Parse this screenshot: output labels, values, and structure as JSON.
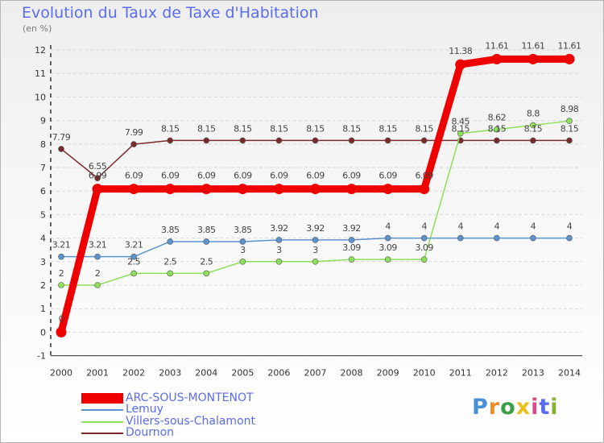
{
  "title": "Evolution du Taux de Taxe d'Habitation",
  "unit_label": "(en %)",
  "logo_text": "Proxiti",
  "logo_colors": [
    "#4a90d9",
    "#f08c28",
    "#3aa048",
    "#e8c020",
    "#d84a8a",
    "#5a6cf0",
    "#88b030"
  ],
  "chart_data": {
    "type": "line",
    "title": "Evolution du Taux de Taxe d'Habitation",
    "ylabel": "(en %)",
    "xlabel": "",
    "x": [
      "2000",
      "2001",
      "2002",
      "2003",
      "2004",
      "2005",
      "2006",
      "2007",
      "2008",
      "2009",
      "2010",
      "2011",
      "2012",
      "2013",
      "2014"
    ],
    "ylim": [
      -1,
      12
    ],
    "yticks": [
      "-1",
      "0",
      "1",
      "2",
      "3",
      "4",
      "5",
      "6",
      "7",
      "8",
      "9",
      "10",
      "11",
      "12"
    ],
    "legend_position": "bottom-left",
    "series": [
      {
        "name": "ARC-SOUS-MONTENOT",
        "color": "#ee0000",
        "emphasis": true,
        "values": [
          0,
          6.09,
          6.09,
          6.09,
          6.09,
          6.09,
          6.09,
          6.09,
          6.09,
          6.09,
          6.09,
          11.38,
          11.61,
          11.61,
          11.61
        ],
        "labels": [
          "0",
          "6.09",
          "6.09",
          "6.09",
          "6.09",
          "6.09",
          "6.09",
          "6.09",
          "6.09",
          "6.09",
          "6.09",
          "11.38",
          "11.61",
          "11.61",
          "11.61"
        ]
      },
      {
        "name": "Lemuy",
        "color": "#5a94cf",
        "emphasis": false,
        "values": [
          3.21,
          3.21,
          3.21,
          3.85,
          3.85,
          3.85,
          3.92,
          3.92,
          3.92,
          4,
          4,
          4,
          4,
          4,
          4
        ],
        "labels": [
          "3.21",
          "3.21",
          "3.21",
          "3.85",
          "3.85",
          "3.85",
          "3.92",
          "3.92",
          "3.92",
          "4",
          "4",
          "4",
          "4",
          "4",
          "4"
        ]
      },
      {
        "name": "Villers-sous-Chalamont",
        "color": "#8ee05a",
        "emphasis": false,
        "values": [
          2,
          2,
          2.5,
          2.5,
          2.5,
          3,
          3,
          3,
          3.09,
          3.09,
          3.09,
          8.45,
          8.62,
          8.8,
          8.98
        ],
        "labels": [
          "2",
          "2",
          "2.5",
          "2.5",
          "2.5",
          "3",
          "3",
          "3",
          "3.09",
          "3.09",
          "3.09",
          "8.45",
          "8.62",
          "8.8",
          "8.98"
        ]
      },
      {
        "name": "Dournon",
        "color": "#7a2a2a",
        "emphasis": false,
        "values": [
          7.79,
          6.55,
          7.99,
          8.15,
          8.15,
          8.15,
          8.15,
          8.15,
          8.15,
          8.15,
          8.15,
          8.15,
          8.15,
          8.15,
          8.15
        ],
        "labels": [
          "7.79",
          "6.55",
          "7.99",
          "8.15",
          "8.15",
          "8.15",
          "8.15",
          "8.15",
          "8.15",
          "8.15",
          "8.15",
          "8.15",
          "8.15",
          "8.15",
          "8.15"
        ]
      }
    ]
  }
}
